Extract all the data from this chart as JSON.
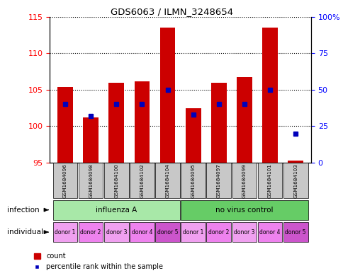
{
  "title": "GDS6063 / ILMN_3248654",
  "samples": [
    "GSM1684096",
    "GSM1684098",
    "GSM1684100",
    "GSM1684102",
    "GSM1684104",
    "GSM1684095",
    "GSM1684097",
    "GSM1684099",
    "GSM1684101",
    "GSM1684103"
  ],
  "count_values": [
    105.4,
    101.2,
    105.9,
    106.1,
    113.5,
    102.5,
    105.9,
    106.7,
    113.5,
    95.3
  ],
  "percentile_values": [
    40,
    32,
    40,
    40,
    50,
    33,
    40,
    40,
    50,
    20
  ],
  "y_min": 95,
  "y_max": 115,
  "y_ticks": [
    95,
    100,
    105,
    110,
    115
  ],
  "y2_ticks_labels": [
    "0",
    "25",
    "50",
    "75",
    "100%"
  ],
  "y2_ticks_pct": [
    0,
    25,
    50,
    75,
    100
  ],
  "infection_groups": [
    "influenza A",
    "no virus control"
  ],
  "infection_colors": [
    "#A8E8A8",
    "#66CC66"
  ],
  "individual_labels": [
    "donor 1",
    "donor 2",
    "donor 3",
    "donor 4",
    "donor 5",
    "donor 1",
    "donor 2",
    "donor 3",
    "donor 4",
    "donor 5"
  ],
  "individual_colors": [
    "#F0A0F0",
    "#EE82EE",
    "#F0A0F0",
    "#EE82EE",
    "#CC55CC",
    "#F0A0F0",
    "#EE82EE",
    "#F0A0F0",
    "#EE82EE",
    "#CC55CC"
  ],
  "bar_color": "#CC0000",
  "dot_color": "#0000BB",
  "sample_bg": "#C8C8C8",
  "bar_width": 0.6
}
